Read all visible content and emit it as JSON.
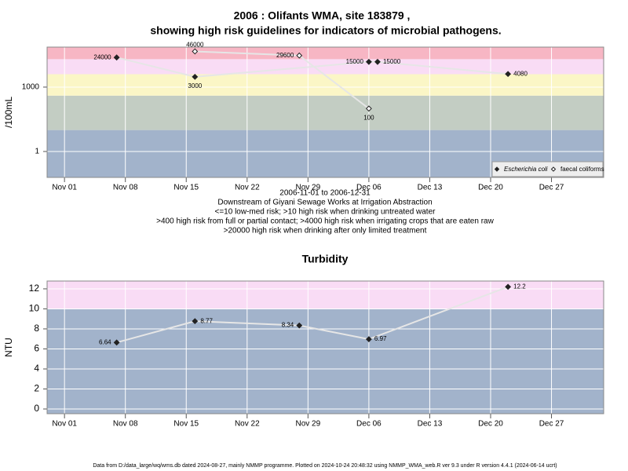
{
  "chart_data": [
    {
      "type": "scatter-line",
      "title": [
        "2006 : Olifants WMA, site 183879 ,",
        "showing high risk guidelines for indicators of microbial pathogens."
      ],
      "notes": [
        "2006-11-01 to 2006-12-31",
        "Downstream of Giyani Sewage Works at Irrigation Abstraction",
        "<=10 low-med risk; >10 high risk when drinking untreated water",
        ">400 high risk from full or partial contact; >4000 high risk when irrigating crops that are eaten raw",
        ">20000 high risk when drinking after only limited treatment"
      ],
      "ylabel": "/100mL",
      "log_scale": true,
      "ylim": [
        0.062,
        73000
      ],
      "yticks": [
        1,
        1000
      ],
      "xlim": [
        "Oct 30",
        "Jan 02"
      ],
      "xticks": [
        "Nov 01",
        "Nov 08",
        "Nov 15",
        "Nov 22",
        "Nov 29",
        "Dec 06",
        "Dec 13",
        "Dec 20",
        "Dec 27"
      ],
      "grid": true,
      "legend": "bottomright",
      "bands": [
        {
          "from": 0.062,
          "to": 10,
          "color": "#a2b3cb"
        },
        {
          "from": 10,
          "to": 400,
          "color": "#c3cdc3"
        },
        {
          "from": 400,
          "to": 4000,
          "color": "#fbf6c6"
        },
        {
          "from": 4000,
          "to": 20000,
          "color": "#f9dcf5"
        },
        {
          "from": 20000,
          "to": 73000,
          "color": "#f7b6c4"
        }
      ],
      "series": [
        {
          "name": "Escherichia coli",
          "color": "#222222",
          "marker": "filled",
          "x": [
            "Nov 07",
            "Nov 16",
            "Dec 06",
            "Dec 07",
            "Dec 22"
          ],
          "values": [
            24000,
            3000,
            15000,
            15000,
            4080
          ]
        },
        {
          "name": "faecal coliforms",
          "color": "#222222",
          "marker": "open",
          "x": [
            "Nov 16",
            "Nov 28",
            "Dec 06"
          ],
          "values": [
            46000,
            29600,
            100
          ]
        }
      ]
    },
    {
      "type": "scatter-line",
      "title": "Turbidity",
      "ylabel": "NTU",
      "log_scale": false,
      "ylim": [
        -0.47,
        12.78
      ],
      "yticks": [
        0,
        2,
        4,
        6,
        8,
        10,
        12
      ],
      "xlim": [
        "Oct 30",
        "Jan 02"
      ],
      "xticks": [
        "Nov 01",
        "Nov 08",
        "Nov 15",
        "Nov 22",
        "Nov 29",
        "Dec 06",
        "Dec 13",
        "Dec 20",
        "Dec 27"
      ],
      "grid": true,
      "bands": [
        {
          "from": -0.47,
          "to": 10,
          "color": "#a2b3cb"
        },
        {
          "from": 10,
          "to": 12.78,
          "color": "#f9dcf5"
        }
      ],
      "series": [
        {
          "name": "Turbidity",
          "color": "#222222",
          "marker": "filled",
          "x": [
            "Nov 07",
            "Nov 16",
            "Nov 28",
            "Dec 06",
            "Dec 22"
          ],
          "values": [
            6.64,
            8.77,
            8.34,
            6.97,
            12.2
          ]
        }
      ]
    }
  ],
  "footer": "Data from D:/data_large/wq/wms.db dated 2024-08-27, mainly NMMP programme. Plotted on 2024-10-24 20:48:32 using NMMP_WMA_web.R ver 9.3 under R version 4.4.1 (2024-06-14 ucrt)"
}
